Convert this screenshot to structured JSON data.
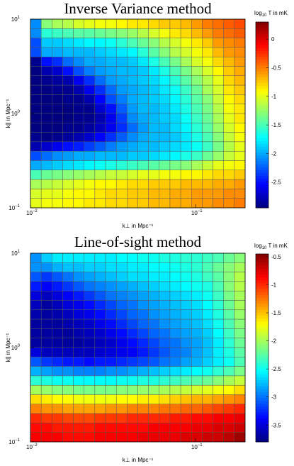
{
  "chart_data": [
    {
      "type": "heatmap",
      "title": "Inverse Variance method",
      "xlabel": "k⊥ in Mpc⁻¹",
      "ylabel": "k∥ in Mpc⁻¹",
      "x_scale": "log",
      "y_scale": "log",
      "xlim": [
        0.01,
        0.2
      ],
      "ylim": [
        0.1,
        10
      ],
      "x_ticks": [
        {
          "value": 0.01,
          "base": "10",
          "exp": "−2"
        },
        {
          "value": 0.1,
          "base": "10",
          "exp": "−1"
        }
      ],
      "y_ticks": [
        {
          "value": 0.1,
          "base": "10",
          "exp": "−1"
        },
        {
          "value": 1,
          "base": "10",
          "exp": "0"
        },
        {
          "value": 10,
          "base": "10",
          "exp": "1"
        }
      ],
      "nx": 20,
      "ny": 20,
      "colorbar": {
        "label": "log10 T in mK",
        "label_base": "log",
        "label_sub": "10",
        "label_rest": " T in mK",
        "min": -2.95,
        "max": 0.3,
        "ticks": [
          "0",
          "-0.5",
          "-1",
          "-1.5",
          "-2",
          "-2.5"
        ],
        "tick_values": [
          0,
          -0.5,
          -1,
          -1.5,
          -2,
          -2.5
        ]
      },
      "values": [
        [
          -2.1,
          -1.3,
          -1.2,
          -1.15,
          -1.05,
          -1.0,
          -0.95,
          -0.95,
          -0.9,
          -0.85,
          -0.85,
          -0.8,
          -0.75,
          -0.75,
          -0.7,
          -0.6,
          -0.5,
          -0.45,
          -0.4,
          -0.35
        ],
        [
          -2.1,
          -1.6,
          -1.55,
          -1.5,
          -1.45,
          -1.45,
          -1.4,
          -1.35,
          -1.3,
          -1.25,
          -1.15,
          -1.05,
          -0.95,
          -0.85,
          -0.8,
          -0.7,
          -0.6,
          -0.5,
          -0.45,
          -0.4
        ],
        [
          -2.3,
          -1.9,
          -1.9,
          -1.85,
          -1.8,
          -1.75,
          -1.75,
          -1.7,
          -1.6,
          -1.5,
          -1.4,
          -1.3,
          -1.15,
          -1.05,
          -0.95,
          -0.85,
          -0.75,
          -0.6,
          -0.55,
          -0.5
        ],
        [
          -2.3,
          -2.0,
          -2.0,
          -1.95,
          -1.95,
          -1.95,
          -1.9,
          -1.85,
          -1.8,
          -1.75,
          -1.6,
          -1.45,
          -1.3,
          -1.15,
          -1.05,
          -0.95,
          -0.85,
          -0.7,
          -0.6,
          -0.55
        ],
        [
          -2.9,
          -2.5,
          -2.4,
          -2.2,
          -2.1,
          -2.0,
          -2.0,
          -1.95,
          -1.95,
          -1.9,
          -1.8,
          -1.65,
          -1.5,
          -1.35,
          -1.2,
          -1.05,
          -0.95,
          -0.8,
          -0.7,
          -0.6
        ],
        [
          -2.95,
          -2.8,
          -2.7,
          -2.5,
          -2.3,
          -2.15,
          -2.05,
          -2.0,
          -1.95,
          -1.95,
          -1.9,
          -1.8,
          -1.65,
          -1.5,
          -1.35,
          -1.2,
          -1.05,
          -0.9,
          -0.75,
          -0.65
        ],
        [
          -2.95,
          -2.9,
          -2.85,
          -2.8,
          -2.6,
          -2.4,
          -2.2,
          -2.05,
          -2.0,
          -1.95,
          -1.9,
          -1.85,
          -1.75,
          -1.6,
          -1.45,
          -1.3,
          -1.15,
          -1.0,
          -0.8,
          -0.7
        ],
        [
          -2.95,
          -2.95,
          -2.9,
          -2.9,
          -2.8,
          -2.6,
          -2.4,
          -2.2,
          -2.05,
          -2.0,
          -1.95,
          -1.9,
          -1.8,
          -1.7,
          -1.55,
          -1.4,
          -1.2,
          -1.05,
          -0.85,
          -0.75
        ],
        [
          -2.95,
          -2.95,
          -2.95,
          -2.9,
          -2.9,
          -2.8,
          -2.55,
          -2.3,
          -2.15,
          -2.0,
          -1.95,
          -1.9,
          -1.85,
          -1.75,
          -1.6,
          -1.45,
          -1.3,
          -1.1,
          -0.9,
          -0.8
        ],
        [
          -2.95,
          -2.95,
          -2.95,
          -2.95,
          -2.9,
          -2.9,
          -2.7,
          -2.5,
          -2.25,
          -2.05,
          -1.95,
          -1.95,
          -1.9,
          -1.8,
          -1.65,
          -1.5,
          -1.35,
          -1.15,
          -0.95,
          -0.85
        ],
        [
          -2.95,
          -2.95,
          -2.95,
          -2.95,
          -2.9,
          -2.9,
          -2.8,
          -2.6,
          -2.35,
          -2.1,
          -2.0,
          -1.95,
          -1.9,
          -1.85,
          -1.7,
          -1.55,
          -1.4,
          -1.2,
          -1.0,
          -0.85
        ],
        [
          -2.95,
          -2.95,
          -2.95,
          -2.9,
          -2.9,
          -2.85,
          -2.75,
          -2.6,
          -2.4,
          -2.2,
          -2.05,
          -1.95,
          -1.95,
          -1.85,
          -1.75,
          -1.6,
          -1.45,
          -1.25,
          -1.05,
          -0.9
        ],
        [
          -2.9,
          -2.95,
          -2.9,
          -2.85,
          -2.8,
          -2.7,
          -2.55,
          -2.4,
          -2.25,
          -2.1,
          -2.0,
          -1.95,
          -1.95,
          -1.9,
          -1.8,
          -1.65,
          -1.5,
          -1.3,
          -1.1,
          -0.95
        ],
        [
          -2.8,
          -2.7,
          -2.6,
          -2.5,
          -2.45,
          -2.35,
          -2.25,
          -2.15,
          -2.05,
          -2.0,
          -1.95,
          -1.95,
          -1.9,
          -1.85,
          -1.8,
          -1.7,
          -1.55,
          -1.35,
          -1.15,
          -1.0
        ],
        [
          -2.3,
          -2.2,
          -2.1,
          -2.05,
          -2.0,
          -2.0,
          -1.95,
          -1.95,
          -1.95,
          -1.9,
          -1.9,
          -1.85,
          -1.8,
          -1.75,
          -1.65,
          -1.55,
          -1.4,
          -1.25,
          -1.1,
          -1.0
        ],
        [
          -2.0,
          -1.95,
          -1.9,
          -1.85,
          -1.8,
          -1.75,
          -1.7,
          -1.65,
          -1.6,
          -1.55,
          -1.5,
          -1.45,
          -1.4,
          -1.35,
          -1.3,
          -1.2,
          -1.1,
          -1.0,
          -0.95,
          -0.9
        ],
        [
          -1.5,
          -1.4,
          -1.35,
          -1.3,
          -1.25,
          -1.2,
          -1.15,
          -1.1,
          -1.1,
          -1.05,
          -1.0,
          -1.0,
          -0.95,
          -0.95,
          -0.9,
          -0.9,
          -0.85,
          -0.8,
          -0.8,
          -0.75
        ],
        [
          -1.2,
          -1.15,
          -1.1,
          -1.05,
          -1.0,
          -0.95,
          -0.9,
          -0.9,
          -0.85,
          -0.8,
          -0.8,
          -0.75,
          -0.75,
          -0.75,
          -0.7,
          -0.7,
          -0.7,
          -0.65,
          -0.65,
          -0.6
        ],
        [
          -1.05,
          -1.0,
          -1.0,
          -0.95,
          -0.9,
          -0.9,
          -0.85,
          -0.8,
          -0.8,
          -0.75,
          -0.75,
          -0.7,
          -0.7,
          -0.65,
          -0.65,
          -0.6,
          -0.6,
          -0.6,
          -0.55,
          -0.55
        ],
        [
          -1.0,
          -0.95,
          -0.95,
          -0.9,
          -0.9,
          -0.85,
          -0.85,
          -0.8,
          -0.8,
          -0.75,
          -0.75,
          -0.7,
          -0.7,
          -0.65,
          -0.65,
          -0.6,
          -0.6,
          -0.55,
          -0.55,
          -0.5
        ]
      ]
    },
    {
      "type": "heatmap",
      "title": "Line-of-sight method",
      "xlabel": "k⊥ in Mpc⁻¹",
      "ylabel": "k∥ in Mpc⁻¹",
      "x_scale": "log",
      "y_scale": "log",
      "xlim": [
        0.01,
        0.2
      ],
      "ylim": [
        0.1,
        10
      ],
      "x_ticks": [
        {
          "value": 0.01,
          "base": "10",
          "exp": "−2"
        },
        {
          "value": 0.1,
          "base": "10",
          "exp": "−1"
        }
      ],
      "y_ticks": [
        {
          "value": 0.1,
          "base": "10",
          "exp": "−1"
        },
        {
          "value": 1,
          "base": "10",
          "exp": "0"
        },
        {
          "value": 10,
          "base": "10",
          "exp": "1"
        }
      ],
      "nx": 20,
      "ny": 20,
      "colorbar": {
        "label": "log10 T in mK",
        "label_base": "log",
        "label_sub": "10",
        "label_rest": " T in mK",
        "min": -3.8,
        "max": -0.45,
        "ticks": [
          "-0.5",
          "-1",
          "-1.5",
          "-2",
          "-2.5",
          "-3",
          "-3.5"
        ],
        "tick_values": [
          -0.5,
          -1,
          -1.5,
          -2,
          -2.5,
          -3,
          -3.5
        ]
      },
      "values": [
        [
          -2.9,
          -2.7,
          -2.6,
          -2.6,
          -2.6,
          -2.6,
          -2.6,
          -2.6,
          -2.55,
          -2.55,
          -2.5,
          -2.5,
          -2.45,
          -2.45,
          -2.4,
          -2.4,
          -2.35,
          -2.3,
          -2.2,
          -2.1
        ],
        [
          -2.9,
          -2.9,
          -2.8,
          -2.75,
          -2.75,
          -2.7,
          -2.7,
          -2.65,
          -2.65,
          -2.6,
          -2.6,
          -2.55,
          -2.55,
          -2.5,
          -2.45,
          -2.4,
          -2.3,
          -2.2,
          -2.1,
          -2.0
        ],
        [
          -3.1,
          -3.2,
          -3.1,
          -3.0,
          -2.9,
          -2.85,
          -2.8,
          -2.75,
          -2.7,
          -2.65,
          -2.65,
          -2.6,
          -2.6,
          -2.55,
          -2.5,
          -2.45,
          -2.35,
          -2.25,
          -2.1,
          -1.95
        ],
        [
          -3.3,
          -3.4,
          -3.3,
          -3.2,
          -3.1,
          -3.0,
          -2.95,
          -2.9,
          -2.85,
          -2.8,
          -2.75,
          -2.7,
          -2.65,
          -2.6,
          -2.55,
          -2.5,
          -2.45,
          -2.3,
          -2.1,
          -1.95
        ],
        [
          -3.5,
          -3.6,
          -3.5,
          -3.4,
          -3.3,
          -3.2,
          -3.1,
          -3.0,
          -2.95,
          -2.9,
          -2.85,
          -2.8,
          -2.75,
          -2.7,
          -2.65,
          -2.6,
          -2.5,
          -2.35,
          -2.15,
          -2.0
        ],
        [
          -3.6,
          -3.7,
          -3.6,
          -3.5,
          -3.45,
          -3.35,
          -3.25,
          -3.15,
          -3.05,
          -3.0,
          -2.9,
          -2.85,
          -2.8,
          -2.75,
          -2.7,
          -2.65,
          -2.55,
          -2.4,
          -2.2,
          -2.0
        ],
        [
          -3.65,
          -3.7,
          -3.65,
          -3.6,
          -3.5,
          -3.45,
          -3.35,
          -3.25,
          -3.15,
          -3.05,
          -3.0,
          -2.9,
          -2.85,
          -2.8,
          -2.75,
          -2.7,
          -2.6,
          -2.45,
          -2.25,
          -2.05
        ],
        [
          -3.7,
          -3.7,
          -3.7,
          -3.65,
          -3.6,
          -3.55,
          -3.45,
          -3.35,
          -3.25,
          -3.15,
          -3.05,
          -3.0,
          -2.9,
          -2.85,
          -2.8,
          -2.75,
          -2.65,
          -2.5,
          -2.3,
          -2.1
        ],
        [
          -3.7,
          -3.7,
          -3.7,
          -3.7,
          -3.65,
          -3.6,
          -3.55,
          -3.45,
          -3.35,
          -3.25,
          -3.15,
          -3.05,
          -3.0,
          -2.9,
          -2.85,
          -2.8,
          -2.7,
          -2.55,
          -2.35,
          -2.15
        ],
        [
          -3.7,
          -3.7,
          -3.7,
          -3.7,
          -3.7,
          -3.65,
          -3.6,
          -3.55,
          -3.45,
          -3.35,
          -3.25,
          -3.15,
          -3.05,
          -3.0,
          -2.9,
          -2.85,
          -2.75,
          -2.6,
          -2.4,
          -2.2
        ],
        [
          -3.5,
          -3.6,
          -3.6,
          -3.6,
          -3.6,
          -3.6,
          -3.55,
          -3.5,
          -3.45,
          -3.4,
          -3.3,
          -3.2,
          -3.1,
          -3.0,
          -2.95,
          -2.85,
          -2.75,
          -2.6,
          -2.45,
          -2.25
        ],
        [
          -3.1,
          -3.2,
          -3.25,
          -3.3,
          -3.3,
          -3.35,
          -3.3,
          -3.3,
          -3.25,
          -3.2,
          -3.15,
          -3.1,
          -3.0,
          -2.95,
          -2.85,
          -2.8,
          -2.7,
          -2.6,
          -2.5,
          -2.3
        ],
        [
          -2.8,
          -2.85,
          -2.9,
          -2.9,
          -2.95,
          -2.95,
          -2.95,
          -2.9,
          -2.9,
          -2.85,
          -2.8,
          -2.75,
          -2.7,
          -2.65,
          -2.6,
          -2.55,
          -2.5,
          -2.4,
          -2.3,
          -2.15
        ],
        [
          -2.4,
          -2.45,
          -2.5,
          -2.5,
          -2.55,
          -2.55,
          -2.55,
          -2.55,
          -2.5,
          -2.5,
          -2.45,
          -2.45,
          -2.4,
          -2.35,
          -2.3,
          -2.25,
          -2.2,
          -2.1,
          -2.0,
          -1.9
        ],
        [
          -2.0,
          -2.05,
          -2.1,
          -2.1,
          -2.15,
          -2.15,
          -2.15,
          -2.15,
          -2.1,
          -2.1,
          -2.05,
          -2.05,
          -2.0,
          -1.95,
          -1.9,
          -1.85,
          -1.8,
          -1.75,
          -1.7,
          -1.6
        ],
        [
          -1.6,
          -1.65,
          -1.7,
          -1.7,
          -1.75,
          -1.75,
          -1.75,
          -1.75,
          -1.7,
          -1.7,
          -1.65,
          -1.65,
          -1.6,
          -1.55,
          -1.5,
          -1.45,
          -1.45,
          -1.4,
          -1.35,
          -1.3
        ],
        [
          -1.3,
          -1.35,
          -1.35,
          -1.4,
          -1.4,
          -1.4,
          -1.4,
          -1.35,
          -1.35,
          -1.3,
          -1.3,
          -1.3,
          -1.25,
          -1.25,
          -1.2,
          -1.2,
          -1.15,
          -1.1,
          -1.05,
          -1.0
        ],
        [
          -1.0,
          -1.05,
          -1.05,
          -1.1,
          -1.1,
          -1.1,
          -1.05,
          -1.05,
          -1.05,
          -1.0,
          -1.0,
          -1.0,
          -1.0,
          -0.95,
          -0.95,
          -0.9,
          -0.9,
          -0.85,
          -0.85,
          -0.8
        ],
        [
          -0.9,
          -0.9,
          -0.95,
          -0.95,
          -0.95,
          -0.95,
          -0.9,
          -0.9,
          -0.9,
          -0.9,
          -0.9,
          -0.85,
          -0.85,
          -0.85,
          -0.85,
          -0.8,
          -0.8,
          -0.75,
          -0.75,
          -0.7
        ],
        [
          -0.85,
          -0.85,
          -0.85,
          -0.9,
          -0.9,
          -0.9,
          -0.85,
          -0.85,
          -0.85,
          -0.85,
          -0.8,
          -0.8,
          -0.8,
          -0.8,
          -0.75,
          -0.75,
          -0.7,
          -0.7,
          -0.65,
          -0.55
        ]
      ]
    }
  ]
}
